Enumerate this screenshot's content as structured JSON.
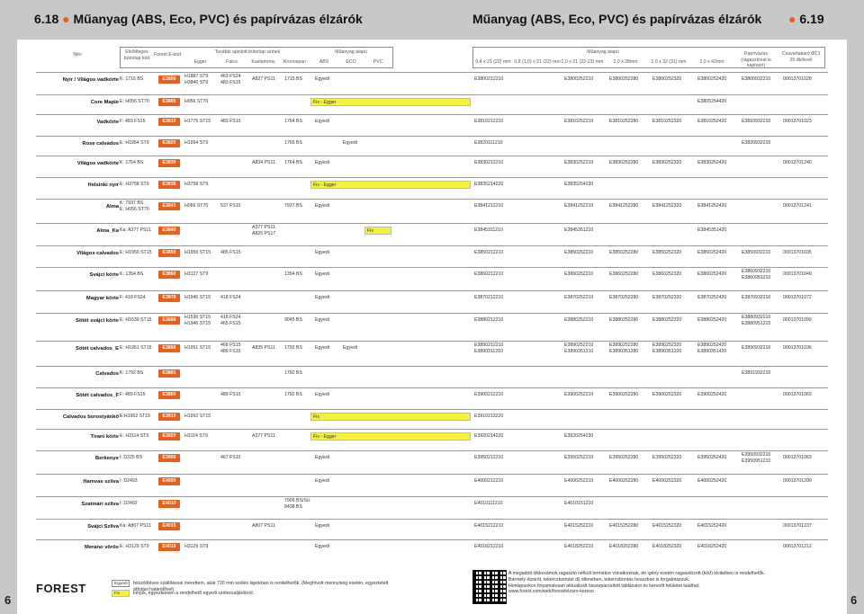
{
  "header": {
    "left_num": "6.18",
    "left_title": "Műanyag (ABS, Eco, PVC) és papírvázas élzárók",
    "right_title": "Műanyag (ABS, Eco, PVC) és papírvázas élzárók",
    "right_num": "6.19",
    "page_left": "6",
    "page_right": "6"
  },
  "columns": {
    "nev": "Név",
    "elozo": "Elsődleges bútorlap kód",
    "forest": "Forest E-kód",
    "tovabbi": "További ajánlott bútorlap színek",
    "egger": "Egger",
    "falco": "Falco",
    "kastamonu": "Kastamonu",
    "kronospan": "Kronospan",
    "muanyag": "Műanyag alapú",
    "abs": "ABS",
    "eco": "ECO",
    "pvc": "PVC",
    "muanyag2": "Műanyag alapú",
    "s1": "0,4 x 21 (22) mm",
    "s2": "0,8 (1,0) x 21 (22) mm",
    "s3": "2,0 x 21 (22-23) mm",
    "s4": "2,0 x 28mm",
    "s5": "2,0 x 32 (31) mm",
    "s6": "2,0 x 42mm",
    "papir": "Papírvázas (ragasztóval is kapható)",
    "csavar": "Csavartakaró Ø13 25 db/levél"
  },
  "rows": [
    {
      "name": "Nyír / Világos vadkörte",
      "code": "K: 1715 BS",
      "e": "E3800",
      "egger": "H1887 ST9|H3840 ST9",
      "falco": "463 FS24|483 FS15",
      "kast": "A827 PS11",
      "kron": "1715 BS",
      "abs": "Egyedi",
      "eco": "",
      "pvc": "",
      "c1": "E3800212210",
      "c2": "",
      "c3": "E3800252210",
      "c4": "E3800252280",
      "c5": "E3800252320",
      "c6": "E3800252420",
      "pap": "E3800932210",
      "csav": "00013701028"
    },
    {
      "name": "Core Maple",
      "code": "E: H056 ST70",
      "e": "E3805",
      "egger": "H056 ST70",
      "falco": "",
      "kast": "",
      "kron": "",
      "abs": "",
      "eco": "",
      "pvc": "",
      "yel": "Fix - Egger",
      "c1": "",
      "c2": "",
      "c3": "",
      "c4": "",
      "c5": "",
      "c6": "E3805254420",
      "pap": "",
      "csav": ""
    },
    {
      "name": "Vadkörte",
      "code": "F: 483 FS15",
      "e": "E3810",
      "egger": "H1775 ST15",
      "falco": "483 FS15",
      "kast": "",
      "kron": "1764 BS",
      "abs": "Egyedi",
      "eco": "",
      "pvc": "",
      "c1": "E3810212210",
      "c2": "",
      "c3": "E3810252210",
      "c4": "E3810252280",
      "c5": "E3810252320",
      "c6": "E3810252420",
      "pap": "E3810932210",
      "csav": "00013701023"
    },
    {
      "name": "Rose calvados",
      "code": "E: H1954 ST9",
      "e": "E3820",
      "egger": "H1954 ST9",
      "falco": "",
      "kast": "",
      "kron": "1765 BS",
      "abs": "",
      "eco": "Egyedi",
      "pvc": "",
      "c1": "E3820111210",
      "c2": "",
      "c3": "",
      "c4": "",
      "c5": "",
      "c6": "",
      "pap": "E3820932210",
      "csav": ""
    },
    {
      "name": "Világos vadkörte",
      "code": "K: 1764 BS",
      "e": "E3830",
      "egger": "",
      "falco": "",
      "kast": "A834 PS11",
      "kron": "1764 BS",
      "abs": "Egyedi",
      "eco": "",
      "pvc": "",
      "c1": "E3830212210",
      "c2": "",
      "c3": "E3830252210",
      "c4": "E3830252280",
      "c5": "E3830252320",
      "c6": "E3830252420",
      "pap": "",
      "csav": "00013701240"
    },
    {
      "name": "Helsinki nyír",
      "code": "E: H3758 ST9",
      "e": "E3835",
      "egger": "H3758 ST9",
      "falco": "",
      "kast": "",
      "kron": "",
      "abs": "",
      "eco": "",
      "pvc": "",
      "yel": "Fix - Egger",
      "c1": "E3835214220",
      "c2": "",
      "c3": "E3835254230",
      "c4": "",
      "c5": "",
      "c6": "",
      "pap": "",
      "csav": ""
    },
    {
      "name": "Alma",
      "code": "K: 7937 BS|E: H056 ST70",
      "e": "E3841",
      "egger": "H056 ST70",
      "falco": "537 FS15",
      "kast": "",
      "kron": "7937 BS",
      "abs": "Egyedi",
      "eco": "",
      "pvc": "",
      "c1": "E3841212210",
      "c2": "",
      "c3": "E3841252210",
      "c4": "E3841252280",
      "c5": "E3841252320",
      "c6": "E3841252420",
      "pap": "",
      "csav": "00013701241"
    },
    {
      "name": "Alma_Ka",
      "code": "Ka: A377 PS11",
      "e": "E3845",
      "egger": "",
      "falco": "",
      "kast": "A377 PS11|A825 PS17",
      "kron": "",
      "abs": "",
      "eco": "",
      "pvc": "",
      "yel2": "Fix",
      "c1": "E3845311210",
      "c2": "",
      "c3": "E3845351210",
      "c4": "",
      "c5": "",
      "c6": "E3845351420",
      "pap": "",
      "csav": ""
    },
    {
      "name": "Világos calvados",
      "code": "E: H1950 ST15",
      "e": "E3850",
      "egger": "H1950 ST15",
      "falco": "485 FS15",
      "kast": "",
      "kron": "",
      "abs": "Egyedi",
      "eco": "",
      "pvc": "",
      "c1": "E3850212210",
      "c2": "",
      "c3": "E3850252210",
      "c4": "E3850252280",
      "c5": "E3850252320",
      "c6": "E3850252420",
      "pap": "E3850932210",
      "csav": "00013701035"
    },
    {
      "name": "Svájci körte",
      "code": "K: 1354 BS",
      "e": "E3860",
      "egger": "H3127 ST9",
      "falco": "",
      "kast": "",
      "kron": "1354 BS",
      "abs": "Egyedi",
      "eco": "",
      "pvc": "",
      "c1": "E3860212210",
      "c2": "",
      "c3": "E3860252210",
      "c4": "E3860252280",
      "c5": "E3860252320",
      "c6": "E3860252420",
      "pap": "E3860932210|E3860951210",
      "csav": "00013701049"
    },
    {
      "name": "Magyar körte",
      "code": "F: 418 FS24",
      "e": "E3870",
      "egger": "H1946 ST15",
      "falco": "418 FS24",
      "kast": "",
      "kron": "",
      "abs": "Egyedi",
      "eco": "",
      "pvc": "",
      "c1": "E3870212210",
      "c2": "",
      "c3": "E3870252210",
      "c4": "E3870252280",
      "c5": "E3870252320",
      "c6": "E3870252420",
      "pap": "E3870932210",
      "csav": "00013701072"
    },
    {
      "name": "Sötét svájci körte",
      "code": "E: H1530 ST15",
      "e": "E3880",
      "egger": "H1530 ST15|H1946 ST15",
      "falco": "418 FS24|465 FS15",
      "kast": "",
      "kron": "9045 BS",
      "abs": "Egyedi",
      "eco": "",
      "pvc": "",
      "c1": "E3880212210",
      "c2": "",
      "c3": "E3880252210",
      "c4": "E3880252280",
      "c5": "E3880252320",
      "c6": "E3880252420",
      "pap": "E3880932210|E3880951210",
      "csav": "00013701099"
    },
    {
      "name": "Sötét calvados_E",
      "code": "E: H1951 ST15",
      "e": "E3890",
      "egger": "H1951 ST15",
      "falco": "468 FS15|489 FS15",
      "kast": "A835 PS11",
      "kron": "1792 BS",
      "abs": "Egyedi",
      "eco": "Egyedi",
      "pvc": "",
      "c1": "E3890212210|E3890311210",
      "c2": "",
      "c3": "E3890252210|E3890351210",
      "c4": "E3890252280|E3890351280",
      "c5": "E3890252320|E3890351320",
      "c6": "E3890252420|E3890351420",
      "pap": "E3890932210",
      "csav": "00013701036"
    },
    {
      "name": "Calvados",
      "code": "K: 1792 BS",
      "e": "E3891",
      "egger": "",
      "falco": "",
      "kast": "",
      "kron": "1792 BS",
      "abs": "",
      "eco": "",
      "pvc": "",
      "c1": "",
      "c2": "",
      "c3": "",
      "c4": "",
      "c5": "",
      "c6": "",
      "pap": "E3891932210",
      "csav": ""
    },
    {
      "name": "Sötét calvados_F",
      "code": "F: 489 FS15",
      "e": "E3900",
      "egger": "",
      "falco": "489 FS15",
      "kast": "",
      "kron": "1792 BS",
      "abs": "Egyedi",
      "eco": "",
      "pvc": "",
      "c1": "E3900212210",
      "c2": "",
      "c3": "E3900252210",
      "c4": "E3900252280",
      "c5": "E3900252320",
      "c6": "E3900252420",
      "pap": "",
      "csav": "00013701069"
    },
    {
      "name": "Calvados borostyánkő",
      "code": "E:H1952 ST15",
      "e": "E3910",
      "egger": "H1952 ST15",
      "falco": "",
      "kast": "",
      "kron": "",
      "abs": "",
      "eco": "",
      "pvc": "",
      "yel": "Fix",
      "c1": "E3910213220",
      "c2": "",
      "c3": "",
      "c4": "",
      "c5": "",
      "c6": "",
      "pap": "",
      "csav": ""
    },
    {
      "name": "Tirani körte",
      "code": "E: H3114 ST9",
      "e": "E3920",
      "egger": "H3114 ST9",
      "falco": "",
      "kast": "A377 PS11",
      "kron": "",
      "abs": "",
      "eco": "",
      "pvc": "",
      "yel": "Fix - Egger",
      "c1": "E3920214220",
      "c2": "",
      "c3": "E3920254230",
      "c4": "",
      "c5": "",
      "c6": "",
      "pap": "",
      "csav": ""
    },
    {
      "name": "Berkenye",
      "code": "I: D225 BS",
      "e": "E3950",
      "egger": "",
      "falco": "467 FS15",
      "kast": "",
      "kron": "",
      "abs": "Egyedi",
      "eco": "",
      "pvc": "",
      "c1": "E3950212210",
      "c2": "",
      "c3": "E3950252210",
      "c4": "E3950252280",
      "c5": "E3950252320",
      "c6": "E3950252420",
      "pap": "E3950932210|E3950951210",
      "csav": "00013701063"
    },
    {
      "name": "Hamvas szilva",
      "code": "I: D2493",
      "e": "E4000",
      "egger": "",
      "falco": "",
      "kast": "",
      "kron": "",
      "abs": "Egyedi",
      "eco": "",
      "pvc": "",
      "c1": "E4000212210",
      "c2": "",
      "c3": "E4000252210",
      "c4": "E4000252280",
      "c5": "E4000252320",
      "c6": "E4000252420",
      "pap": "",
      "csav": "00013701200"
    },
    {
      "name": "Szatmári szilva",
      "code": "I: D2492",
      "e": "E4010",
      "egger": "",
      "falco": "",
      "kast": "",
      "kron": "7905 BS/SU|8438 BS",
      "abs": "",
      "eco": "",
      "pvc": "",
      "c1": "E4010111210",
      "c2": "",
      "c3": "E4010151210",
      "c4": "",
      "c5": "",
      "c6": "",
      "pap": "",
      "csav": ""
    },
    {
      "name": "Svájci Szilva",
      "code": "Ka: A807 PS11",
      "e": "E4015",
      "egger": "",
      "falco": "",
      "kast": "A807 PS11",
      "kron": "",
      "abs": "Egyedi",
      "eco": "",
      "pvc": "",
      "c1": "E4015212210",
      "c2": "",
      "c3": "E4015252210",
      "c4": "E4015252280",
      "c5": "E4015252320",
      "c6": "E4015252420",
      "pap": "",
      "csav": "00013701237"
    },
    {
      "name": "Merano vörös",
      "code": "E: H3129 ST9",
      "e": "E4018",
      "egger": "H3129 ST9",
      "falco": "",
      "kast": "",
      "kron": "",
      "abs": "Egyedi",
      "eco": "",
      "pvc": "",
      "c1": "E4018212210",
      "c2": "",
      "c3": "E4018252210",
      "c4": "E4018252280",
      "c5": "E4018252320",
      "c6": "E4018252420",
      "pap": "",
      "csav": "00013701212"
    }
  ],
  "footer": {
    "logo": "FOREST",
    "legend_egyedi_tag": "Egyedi",
    "legend_egyedi": "felszólítéses szállítással mérettem, akár 720 mm széles lapokban is rendelhetők. (Meghívott mennyiség esetén, egyeztetett átfutási határidővel)",
    "legend_fix_tag": "Fix",
    "legend_fix": "kérjük, egyeztessen a rendelhető egyedi szélezsaljárókról.",
    "right_text1": "A megadott cikkszámok ragasztó nélküli termékre vonatkoznak, de igény esetén ragasztózott (kód) kivitelben is rendelhetők.",
    "right_text2": "Bármely élzárót, tekercsbontást díj ellenében, tekercsbontás hosszban is forgalmazzuk.",
    "right_text3": "Honlapunkon folyamatosan aktualizált összepárosított táblázatot és keresőt felületet találhat:",
    "right_text4": "www.forest.com/web/forest/elzaro-kereso"
  },
  "colors": {
    "accent": "#e8601c",
    "highlight": "#f7f13a",
    "band": "#c8c8c8"
  }
}
